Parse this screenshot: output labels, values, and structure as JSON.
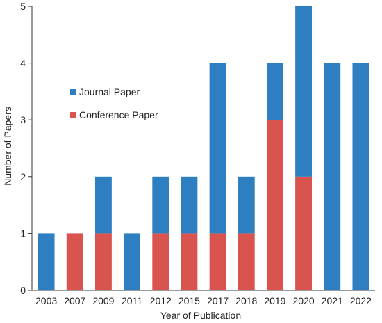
{
  "chart_data": {
    "type": "bar",
    "stacked": true,
    "title": "",
    "xlabel": "Year of Publication",
    "ylabel": "Number of Papers",
    "categories": [
      "2003",
      "2007",
      "2009",
      "2011",
      "2012",
      "2015",
      "2017",
      "2018",
      "2019",
      "2020",
      "2021",
      "2022"
    ],
    "series": [
      {
        "name": "Conference Paper",
        "color": "#d9534f",
        "values": [
          0,
          1,
          1,
          0,
          1,
          1,
          1,
          1,
          3,
          2,
          0,
          0
        ]
      },
      {
        "name": "Journal Paper",
        "color": "#2e7fc2",
        "values": [
          1,
          0,
          1,
          1,
          1,
          1,
          3,
          1,
          1,
          3,
          4,
          4
        ]
      }
    ],
    "ylim": [
      0,
      5
    ],
    "yticks": [
      "0",
      "1",
      "2",
      "3",
      "4",
      "5"
    ],
    "grid": false,
    "legend_position": "center-left"
  }
}
